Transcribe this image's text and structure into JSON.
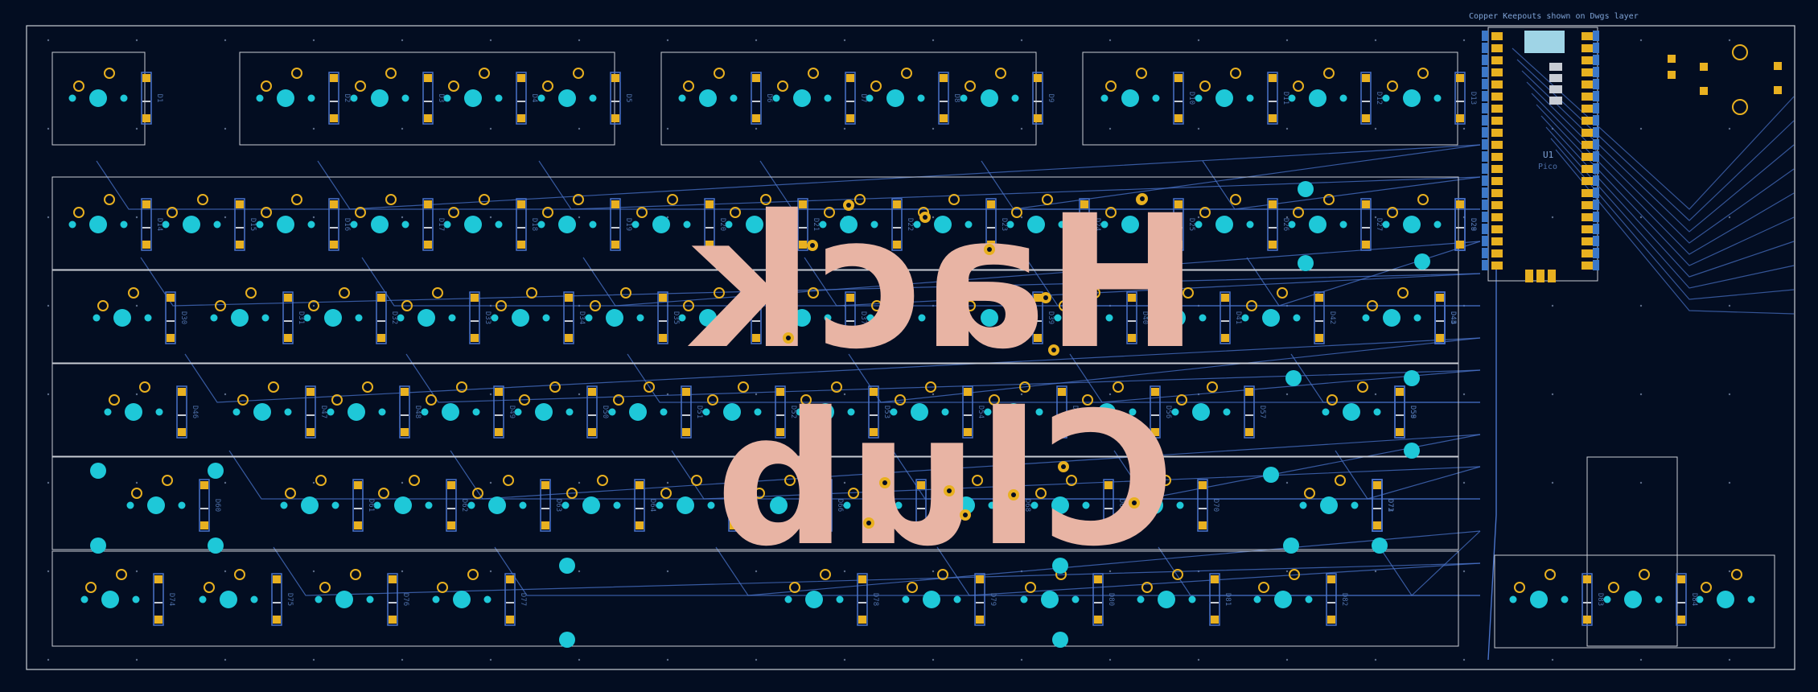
{
  "board": {
    "note": "Copper Keepouts shown on Dwgs layer",
    "logo_line1": "Hack",
    "logo_line2": "Club",
    "mcu_ref": "U1",
    "mcu_value": "Pico",
    "colors": {
      "background": "#030d21",
      "edge": "#c8ccd4",
      "trace": "#4a73c9",
      "pad_hole": "#1ec8d8",
      "gold_ring": "#e8b020",
      "silkscreen": "#e8b4a4",
      "fab_text": "#4d6fa8"
    },
    "rows": [
      {
        "name": "row-function",
        "diodes": [
          "D1",
          "D2",
          "D3",
          "D4",
          "D5",
          "D6",
          "D7",
          "D8",
          "D9",
          "D10",
          "D11",
          "D12",
          "D13"
        ]
      },
      {
        "name": "row-number",
        "diodes": [
          "D14",
          "D15",
          "D16",
          "D17",
          "D18",
          "D19",
          "D20",
          "D21",
          "D22",
          "D23",
          "D24",
          "D25",
          "D26",
          "D27",
          "D28",
          "D29"
        ]
      },
      {
        "name": "row-top-alpha",
        "diodes": [
          "D30",
          "D31",
          "D32",
          "D33",
          "D34",
          "D35",
          "D36",
          "D37",
          "D38",
          "D39",
          "D40",
          "D41",
          "D42",
          "D43",
          "D44",
          "D45"
        ]
      },
      {
        "name": "row-home",
        "diodes": [
          "D46",
          "D47",
          "D48",
          "D49",
          "D50",
          "D51",
          "D52",
          "D53",
          "D54",
          "D55",
          "D56",
          "D57",
          "D58",
          "D59"
        ]
      },
      {
        "name": "row-bottom-alpha",
        "diodes": [
          "D60",
          "D61",
          "D62",
          "D63",
          "D64",
          "D65",
          "D66",
          "D67",
          "D68",
          "D69",
          "D70",
          "D71",
          "D72",
          "D73"
        ]
      },
      {
        "name": "row-modifier",
        "diodes": [
          "D74",
          "D75",
          "D76",
          "D77",
          "D78",
          "D79",
          "D80",
          "D81",
          "D82",
          "D83",
          "D84"
        ]
      }
    ]
  }
}
